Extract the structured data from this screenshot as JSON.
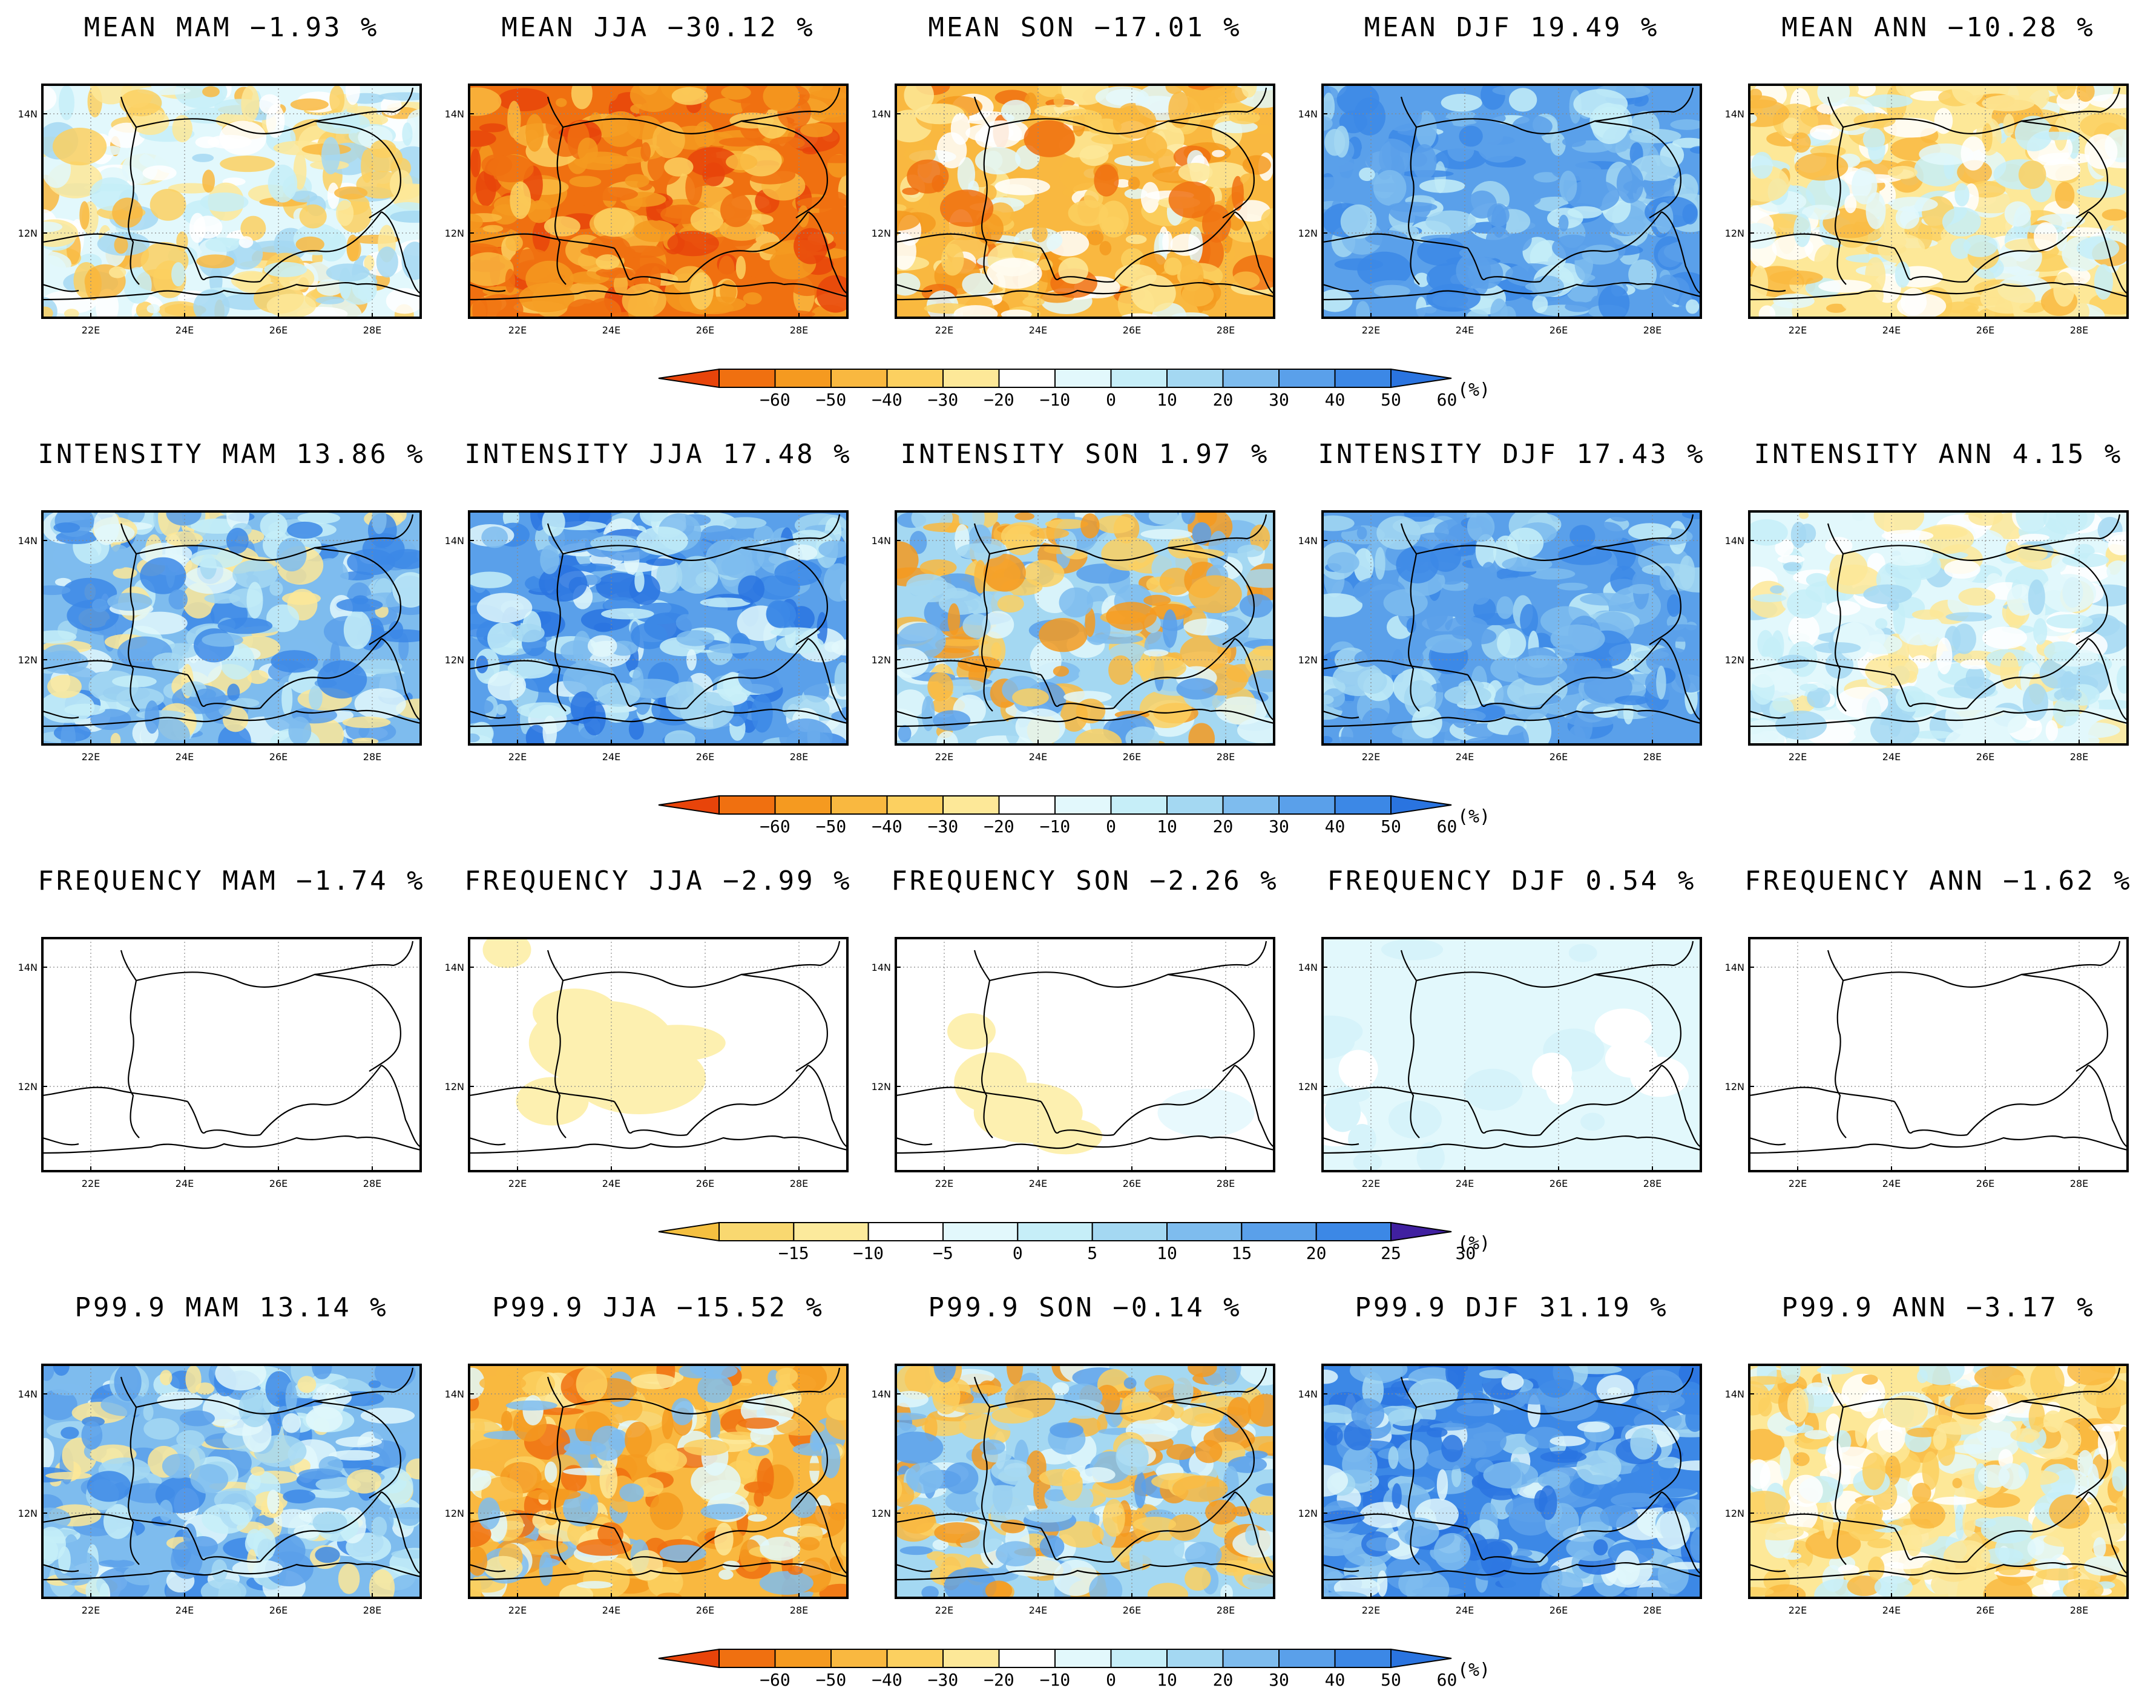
{
  "rows": [
    {
      "variable": "MEAN",
      "panels": [
        {
          "title": "MEAN MAM −1.93 %",
          "pattern": "mixed"
        },
        {
          "title": "MEAN JJA −30.12 %",
          "pattern": "dry"
        },
        {
          "title": "MEAN SON −17.01 %",
          "pattern": "drymix"
        },
        {
          "title": "MEAN DJF 19.49 %",
          "pattern": "wet"
        },
        {
          "title": "MEAN ANN −10.28 %",
          "pattern": "lightdry"
        }
      ],
      "colorbar": {
        "labels": [
          "−60",
          "−50",
          "−40",
          "−30",
          "−20",
          "−10",
          "0",
          "10",
          "20",
          "30",
          "40",
          "50",
          "60"
        ],
        "unit": "(%)",
        "colors": [
          "#e8440a",
          "#f07010",
          "#f59a20",
          "#f9b840",
          "#fcd060",
          "#fde898",
          "#ffffff",
          "#e2f8fc",
          "#c6eef8",
          "#a4d8f2",
          "#7ebcee",
          "#5aa0ea",
          "#3c88e6",
          "#2a74e0"
        ]
      }
    },
    {
      "variable": "INTENSITY",
      "panels": [
        {
          "title": "INTENSITY MAM 13.86 %",
          "pattern": "wetmix"
        },
        {
          "title": "INTENSITY JJA 17.48 %",
          "pattern": "wetnoisy"
        },
        {
          "title": "INTENSITY SON 1.97 %",
          "pattern": "mixed2"
        },
        {
          "title": "INTENSITY DJF 17.43 %",
          "pattern": "wet"
        },
        {
          "title": "INTENSITY ANN 4.15 %",
          "pattern": "lightwet"
        }
      ],
      "colorbar": {
        "labels": [
          "−60",
          "−50",
          "−40",
          "−30",
          "−20",
          "−10",
          "0",
          "10",
          "20",
          "30",
          "40",
          "50",
          "60"
        ],
        "unit": "(%)",
        "colors": [
          "#e8440a",
          "#f07010",
          "#f59a20",
          "#f9b840",
          "#fcd060",
          "#fde898",
          "#ffffff",
          "#e2f8fc",
          "#c6eef8",
          "#a4d8f2",
          "#7ebcee",
          "#5aa0ea",
          "#3c88e6",
          "#2a74e0"
        ]
      }
    },
    {
      "variable": "FREQUENCY",
      "panels": [
        {
          "title": "FREQUENCY MAM −1.74 %",
          "pattern": "blank"
        },
        {
          "title": "FREQUENCY JJA −2.99 %",
          "pattern": "freqdry"
        },
        {
          "title": "FREQUENCY SON −2.26 %",
          "pattern": "freqdry2"
        },
        {
          "title": "FREQUENCY DJF 0.54 %",
          "pattern": "freqwet"
        },
        {
          "title": "FREQUENCY ANN −1.62 %",
          "pattern": "blank"
        }
      ],
      "colorbar": {
        "labels": [
          "−15",
          "−10",
          "−5",
          "0",
          "5",
          "10",
          "15",
          "20",
          "25",
          "30"
        ],
        "unit": "(%)",
        "colors": [
          "#f5c040",
          "#f9d870",
          "#fcea9c",
          "#ffffff",
          "#e2f8fc",
          "#c6eef8",
          "#a4d8f2",
          "#7ebcee",
          "#5aa0ea",
          "#3c88e6",
          "#4020a0"
        ]
      }
    },
    {
      "variable": "P99.9",
      "panels": [
        {
          "title": "P99.9 MAM 13.14 %",
          "pattern": "wetmix"
        },
        {
          "title": "P99.9 JJA −15.52 %",
          "pattern": "drymix2"
        },
        {
          "title": "P99.9 SON −0.14 %",
          "pattern": "mixed2"
        },
        {
          "title": "P99.9 DJF 31.19 %",
          "pattern": "wetstrong"
        },
        {
          "title": "P99.9 ANN −3.17 %",
          "pattern": "lightdry"
        }
      ],
      "colorbar": {
        "labels": [
          "−60",
          "−50",
          "−40",
          "−30",
          "−20",
          "−10",
          "0",
          "10",
          "20",
          "30",
          "40",
          "50",
          "60"
        ],
        "unit": "(%)",
        "colors": [
          "#e8440a",
          "#f07010",
          "#f59a20",
          "#f9b840",
          "#fcd060",
          "#fde898",
          "#ffffff",
          "#e2f8fc",
          "#c6eef8",
          "#a4d8f2",
          "#7ebcee",
          "#5aa0ea",
          "#3c88e6",
          "#2a74e0"
        ]
      }
    }
  ],
  "axis_labels": {
    "y": [
      "14N",
      "12N"
    ],
    "x": [
      "22E",
      "24E",
      "26E",
      "28E"
    ]
  }
}
